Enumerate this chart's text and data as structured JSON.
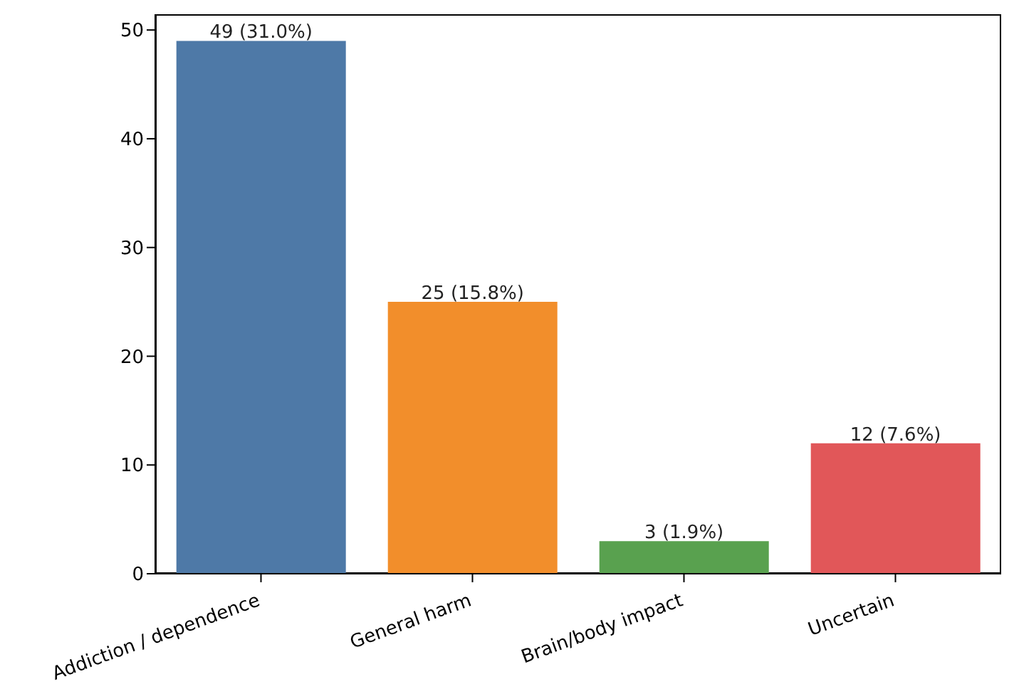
{
  "chart_data": {
    "type": "bar",
    "categories": [
      "Addiction / dependence",
      "General harm",
      "Brain/body impact",
      "Uncertain"
    ],
    "values": [
      49,
      25,
      3,
      12
    ],
    "colors": [
      "#4e79a7",
      "#f28e2b",
      "#59a14f",
      "#e15759"
    ],
    "value_labels": [
      "49 (31.0%)",
      "25 (15.8%)",
      "3 (1.9%)",
      "12 (7.6%)"
    ],
    "ylim": [
      0,
      51.45
    ],
    "yticks": [
      0,
      10,
      20,
      30,
      40,
      50
    ]
  }
}
